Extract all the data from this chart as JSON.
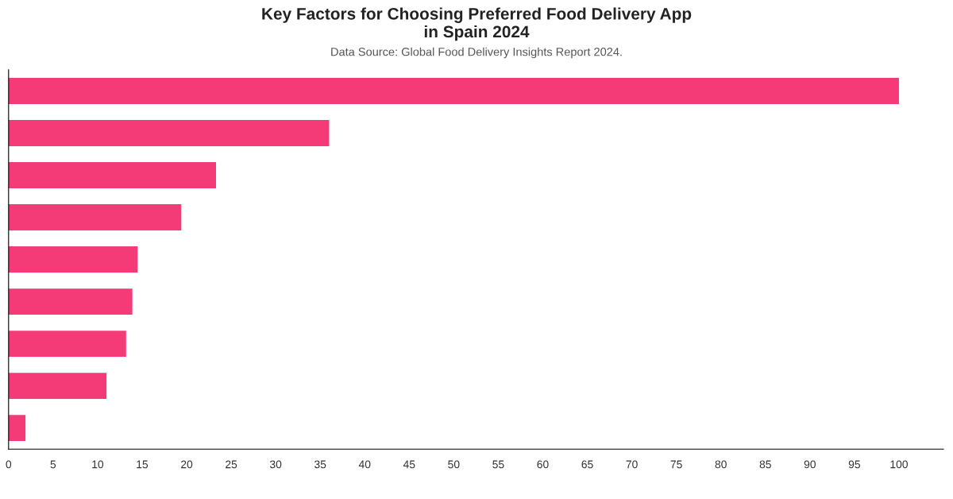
{
  "chart_data": {
    "type": "bar",
    "orientation": "horizontal",
    "title": "Key Factors for Choosing Preferred Food Delivery App\nin Spain 2024",
    "annotations": [
      "Data Source: Global Food Delivery Insights Report 2024."
    ],
    "categories": [
      null,
      null,
      null,
      null,
      null,
      null,
      null,
      null,
      null
    ],
    "values": [
      100,
      36.0,
      23.3,
      19.4,
      14.5,
      13.9,
      13.2,
      11.0,
      1.9
    ],
    "color": "#f53a78",
    "xlim": [
      0,
      105
    ],
    "xticks": [
      0,
      5,
      10,
      15,
      20,
      25,
      30,
      35,
      40,
      45,
      50,
      55,
      60,
      65,
      70,
      75,
      80,
      85,
      90,
      95,
      100
    ],
    "grid": false
  }
}
